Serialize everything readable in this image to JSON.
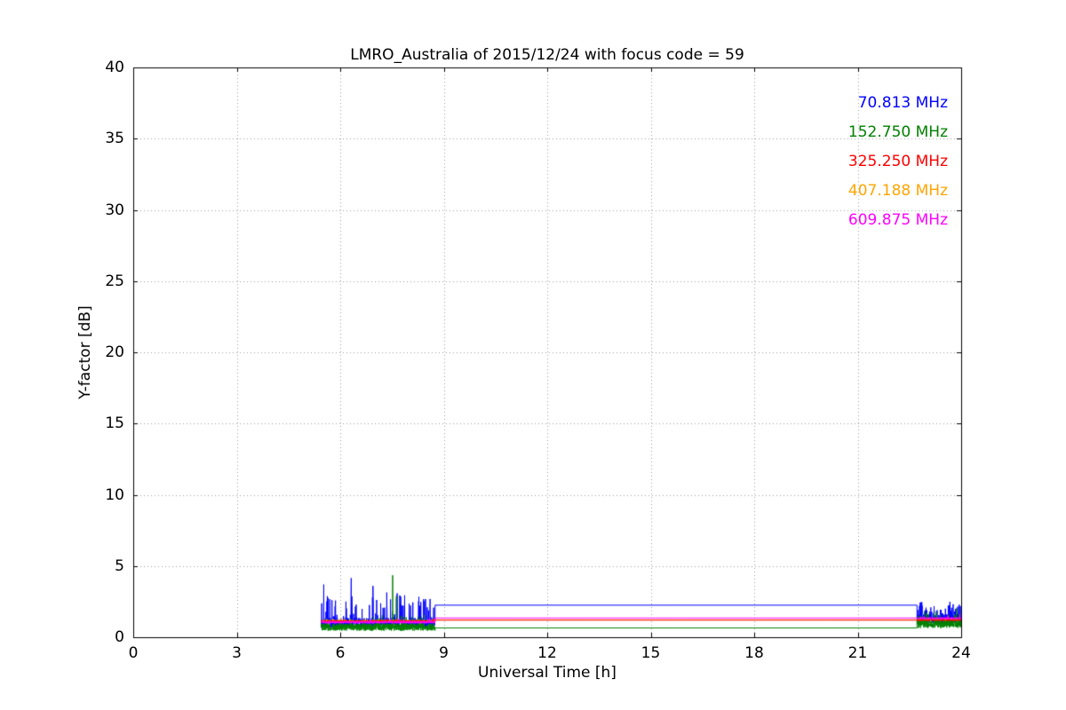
{
  "chart_data": {
    "type": "line",
    "title": "LMRO_Australia of 2015/12/24 with focus code = 59",
    "xlabel": "Universal Time [h]",
    "ylabel": "Y-factor [dB]",
    "xlim": [
      0,
      24
    ],
    "ylim": [
      0,
      40
    ],
    "xticks": [
      0,
      3,
      6,
      9,
      12,
      15,
      18,
      21,
      24
    ],
    "yticks": [
      0,
      5,
      10,
      15,
      20,
      25,
      30,
      35,
      40
    ],
    "grid": {
      "on": true,
      "style": "dotted",
      "color": "#9b9b9b"
    },
    "legend": {
      "position": "top-right"
    },
    "segments": {
      "noisy_morning": [
        5.45,
        8.75
      ],
      "flat_midday": [
        8.75,
        22.72
      ],
      "noisy_evening": [
        22.72,
        24.0
      ]
    },
    "draw_order": [
      0,
      1,
      3,
      2,
      4
    ],
    "series": [
      {
        "name": "70.813 MHz",
        "color": "#0000ff",
        "flat_level": 2.25,
        "noisy1": {
          "base": 1.0,
          "jitter": 0.35,
          "spike_prob": 0.12,
          "spike_scale": 2.0,
          "max": 4.2
        },
        "noisy2": {
          "base": 1.3,
          "jitter": 0.3,
          "spike_prob": 0.15,
          "spike_scale": 1.1,
          "max": 2.7
        },
        "extra_spikes": [
          {
            "x": 5.52,
            "v": 3.7
          },
          {
            "x": 6.32,
            "v": 4.15
          },
          {
            "x": 6.95,
            "v": 3.6
          }
        ]
      },
      {
        "name": "152.750 MHz",
        "color": "#008000",
        "flat_level": 0.65,
        "noisy1": {
          "base": 0.7,
          "jitter": 0.25,
          "spike_prob": 0.06,
          "spike_scale": 0.9,
          "max": 4.4
        },
        "noisy2": {
          "base": 0.95,
          "jitter": 0.3,
          "spike_prob": 0.1,
          "spike_scale": 0.9,
          "max": 2.3
        },
        "extra_spikes": [
          {
            "x": 7.52,
            "v": 4.35
          },
          {
            "x": 7.63,
            "v": 2.9
          }
        ]
      },
      {
        "name": "325.250 MHz",
        "color": "#ff0000",
        "flat_level": 1.2,
        "noisy1": {
          "base": 1.12,
          "jitter": 0.06,
          "spike_prob": 0.02,
          "spike_scale": 0.2,
          "max": 1.5
        },
        "noisy2": {
          "base": 1.2,
          "jitter": 0.05,
          "spike_prob": 0.02,
          "spike_scale": 0.15,
          "max": 1.5
        },
        "extra_spikes": []
      },
      {
        "name": "407.188 MHz",
        "color": "#ffa500",
        "flat_level": 1.22,
        "noisy1": {
          "base": 1.15,
          "jitter": 0.06,
          "spike_prob": 0.02,
          "spike_scale": 0.2,
          "max": 1.5
        },
        "noisy2": {
          "base": 1.22,
          "jitter": 0.05,
          "spike_prob": 0.02,
          "spike_scale": 0.15,
          "max": 1.5
        },
        "extra_spikes": []
      },
      {
        "name": "609.875 MHz",
        "color": "#ff00ff",
        "flat_level": 1.35,
        "noisy1": {
          "base": 1.05,
          "jitter": 0.08,
          "spike_prob": 0.03,
          "spike_scale": 0.25,
          "max": 1.6
        },
        "noisy2": {
          "base": 1.33,
          "jitter": 0.06,
          "spike_prob": 0.02,
          "spike_scale": 0.2,
          "max": 1.7
        },
        "extra_spikes": []
      }
    ]
  }
}
